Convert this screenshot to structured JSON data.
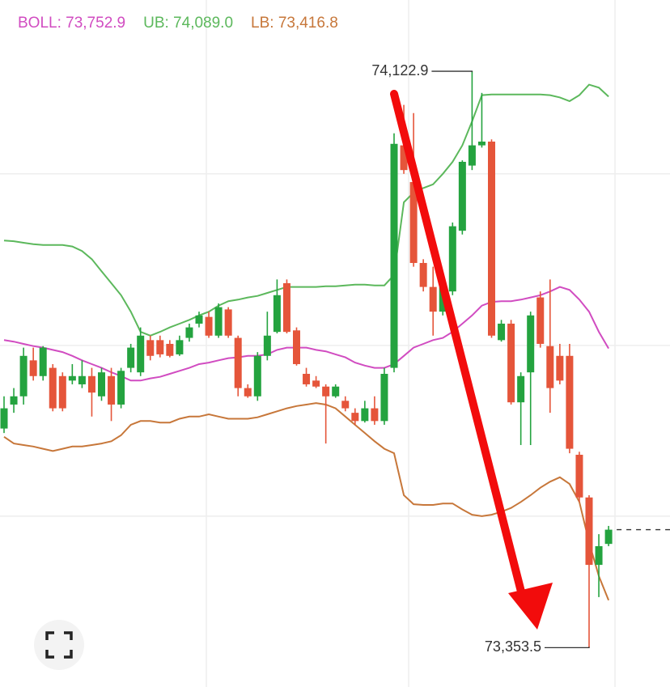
{
  "chart_data": {
    "type": "candlestick",
    "ylim": [
      73301,
      74218
    ],
    "grid_y": [
      73986,
      73757,
      73529
    ],
    "up_color": "#24a33f",
    "down_color": "#e5553a",
    "open": [
      73646,
      73678,
      73689,
      73737,
      73716,
      73727,
      73716,
      73710,
      73705,
      73716,
      73689,
      73716,
      73678,
      73727,
      73721,
      73764,
      73764,
      73759,
      73745,
      73767,
      73786,
      73795,
      73770,
      73805,
      73767,
      73700,
      73689,
      73743,
      73775,
      73840,
      73777,
      73719,
      73710,
      73702,
      73689,
      73683,
      73667,
      73656,
      73673,
      73656,
      73727,
      74024,
      73975,
      73867,
      73835,
      73802,
      73829,
      73910,
      73997,
      74024,
      74029,
      73764,
      73786,
      73681,
      73721,
      73821,
      73756,
      73743,
      73743,
      73611,
      73554,
      73464,
      73492
    ],
    "high": [
      73689,
      73700,
      73754,
      73754,
      73756,
      73732,
      73721,
      73732,
      73737,
      73727,
      73727,
      73727,
      73727,
      73759,
      73781,
      73770,
      73770,
      73764,
      73770,
      73786,
      73802,
      73802,
      73813,
      73808,
      73770,
      73705,
      73748,
      73802,
      73845,
      73845,
      73781,
      73727,
      73716,
      73705,
      73705,
      73689,
      73673,
      73683,
      73689,
      73727,
      74040,
      74078,
      74067,
      73872,
      73862,
      73840,
      73921,
      74004,
      74122.9,
      74094,
      74032,
      73791,
      73791,
      73721,
      73802,
      73829,
      73845,
      73759,
      73759,
      73615,
      73557,
      73505,
      73516
    ],
    "low": [
      73640,
      73667,
      73678,
      73710,
      73710,
      73669,
      73669,
      73705,
      73700,
      73662,
      73683,
      73656,
      73673,
      73721,
      73716,
      73737,
      73741,
      73741,
      73743,
      73762,
      73781,
      73767,
      73767,
      73767,
      73689,
      73687,
      73683,
      73737,
      73773,
      73773,
      73730,
      73702,
      73700,
      73626,
      73687,
      73669,
      73651,
      73654,
      73651,
      73651,
      73721,
      73986,
      73862,
      73829,
      73770,
      73797,
      73824,
      73905,
      73991,
      74021,
      73767,
      73762,
      73678,
      73624,
      73624,
      73754,
      73667,
      73705,
      73613,
      73548,
      73353.5,
      73421,
      73489
    ],
    "close": [
      73673,
      73689,
      73743,
      73716,
      73754,
      73673,
      73673,
      73716,
      73716,
      73694,
      73721,
      73678,
      73723,
      73754,
      73770,
      73743,
      73745,
      73743,
      73764,
      73781,
      73797,
      73770,
      73808,
      73770,
      73700,
      73689,
      73743,
      73770,
      73824,
      73775,
      73732,
      73705,
      73702,
      73689,
      73702,
      73673,
      73656,
      73673,
      73656,
      73719,
      74026,
      73991,
      73867,
      73835,
      73802,
      73835,
      73916,
      74002,
      74024,
      74029,
      73770,
      73786,
      73681,
      73716,
      73797,
      73759,
      73700,
      73710,
      73619,
      73554,
      73464,
      73489,
      73511
    ],
    "series": [
      {
        "name": "BOLL: 73,752.9",
        "color": "#d14cc1",
        "values": [
          73764,
          73762,
          73759,
          73756,
          73754,
          73751,
          73748,
          73743,
          73737,
          73732,
          73727,
          73721,
          73716,
          73710,
          73710,
          73713,
          73715,
          73719,
          73723,
          73727,
          73732,
          73734,
          73737,
          73740,
          73741,
          73743,
          73743,
          73745,
          73751,
          73754,
          73754,
          73754,
          73751,
          73749,
          73745,
          73741,
          73734,
          73730,
          73727,
          73727,
          73732,
          73743,
          73754,
          73759,
          73764,
          73767,
          73775,
          73786,
          73797,
          73810,
          73815,
          73816,
          73816,
          73818,
          73821,
          73824,
          73829,
          73835,
          73831,
          73818,
          73802,
          73775,
          73752.9
        ]
      },
      {
        "name": "UB: 74,089.0",
        "color": "#5cb85c",
        "values": [
          73897,
          73896,
          73894,
          73892,
          73891,
          73891,
          73891,
          73889,
          73883,
          73872,
          73856,
          73840,
          73824,
          73802,
          73775,
          73770,
          73775,
          73781,
          73786,
          73791,
          73797,
          73802,
          73810,
          73816,
          73818,
          73821,
          73823,
          73827,
          73831,
          73835,
          73835,
          73835,
          73835,
          73836,
          73836,
          73837,
          73838,
          73838,
          73837,
          73837,
          73851,
          73948,
          73961,
          73967,
          73972,
          73986,
          74002,
          74024,
          74056,
          74091,
          74092,
          74092,
          74092,
          74092,
          74092,
          74092,
          74091,
          74088,
          74083,
          74091,
          74105,
          74101,
          74089.0
        ]
      },
      {
        "name": "LB: 73,416.8",
        "color": "#c7773a",
        "values": [
          73635,
          73626,
          73624,
          73622,
          73619,
          73616,
          73619,
          73622,
          73622,
          73624,
          73626,
          73629,
          73637,
          73651,
          73656,
          73656,
          73654,
          73654,
          73659,
          73662,
          73662,
          73665,
          73662,
          73659,
          73659,
          73659,
          73661,
          73665,
          73669,
          73673,
          73676,
          73678,
          73680,
          73678,
          73673,
          73662,
          73651,
          73640,
          73629,
          73619,
          73613,
          73557,
          73545,
          73544,
          73544,
          73546,
          73546,
          73538,
          73531,
          73529,
          73531,
          73535,
          73540,
          73548,
          73557,
          73567,
          73575,
          73581,
          73572,
          73548,
          73494,
          73449,
          73416.8
        ]
      }
    ],
    "annotations": [
      {
        "value": 74122.9,
        "label": "74,122.9"
      },
      {
        "value": 73353.5,
        "label": "73,353.5"
      }
    ]
  }
}
